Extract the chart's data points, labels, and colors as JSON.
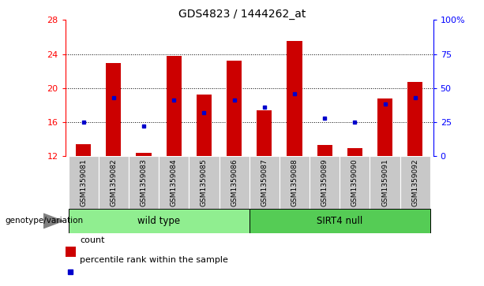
{
  "title": "GDS4823 / 1444262_at",
  "samples": [
    "GSM1359081",
    "GSM1359082",
    "GSM1359083",
    "GSM1359084",
    "GSM1359085",
    "GSM1359086",
    "GSM1359087",
    "GSM1359088",
    "GSM1359089",
    "GSM1359090",
    "GSM1359091",
    "GSM1359092"
  ],
  "counts": [
    13.4,
    22.9,
    12.4,
    23.8,
    19.2,
    23.2,
    17.4,
    25.5,
    13.3,
    12.9,
    18.8,
    20.7
  ],
  "percentile_pcts": [
    25,
    43,
    22,
    41,
    32,
    41,
    36,
    46,
    28,
    25,
    38,
    43
  ],
  "ymin": 12,
  "ymax": 28,
  "yticks": [
    12,
    16,
    20,
    24,
    28
  ],
  "y2min": 0,
  "y2max": 100,
  "y2ticks": [
    0,
    25,
    50,
    75,
    100
  ],
  "bar_color": "#CC0000",
  "dot_color": "#0000CC",
  "group1_label": "wild type",
  "group2_label": "SIRT4 null",
  "group1_indices": [
    0,
    1,
    2,
    3,
    4,
    5
  ],
  "group2_indices": [
    6,
    7,
    8,
    9,
    10,
    11
  ],
  "group1_color": "#90EE90",
  "group2_color": "#55CC55",
  "bar_bg_color": "#C8C8C8",
  "legend_count_label": "count",
  "legend_pct_label": "percentile rank within the sample",
  "genotype_label": "genotype/variation"
}
